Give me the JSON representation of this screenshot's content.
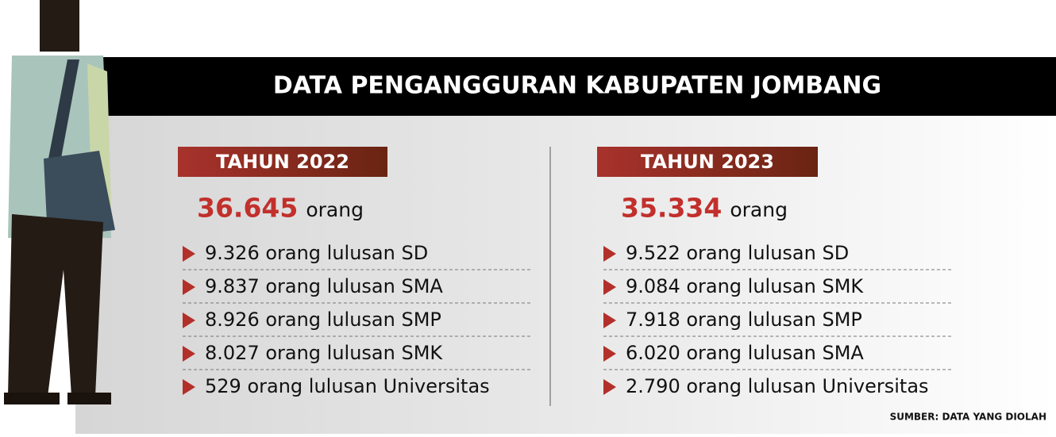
{
  "title": "DATA PENGANGGURAN KABUPATEN JOMBANG",
  "columns": [
    {
      "year_label": "TAHUN 2022",
      "total": "36.645",
      "total_unit": "orang",
      "items": [
        "9.326 orang lulusan SD",
        "9.837 orang lulusan SMA",
        "8.926 orang lulusan SMP",
        "8.027 orang lulusan SMK",
        "529 orang lulusan Universitas"
      ]
    },
    {
      "year_label": "TAHUN 2023",
      "total": "35.334",
      "total_unit": "orang",
      "items": [
        "9.522 orang lulusan SD",
        "9.084 orang lulusan SMK",
        "7.918 orang lulusan SMP",
        "6.020 orang lulusan SMA",
        "2.790 orang lulusan Universitas"
      ]
    }
  ],
  "source": "SUMBER: DATA YANG DIOLAH"
}
